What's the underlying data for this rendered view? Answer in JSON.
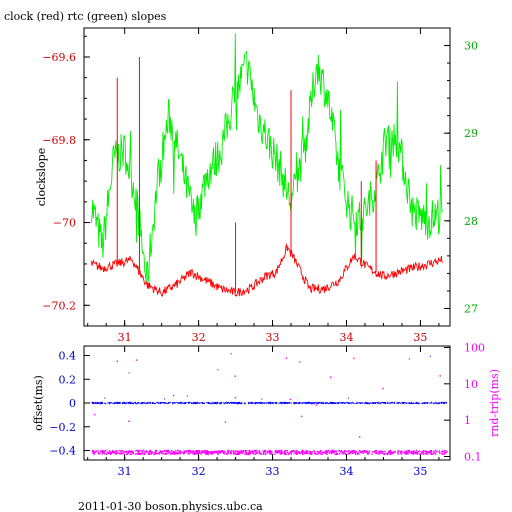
{
  "chart_data": [
    {
      "type": "line",
      "title": "clock (red) rtc (green) slopes",
      "ylabel": "clockslope",
      "y2label": "",
      "xlim": [
        30.45,
        35.4
      ],
      "ylim": [
        -70.25,
        -69.53
      ],
      "y2lim": [
        26.8,
        30.2
      ],
      "x_ticks": [
        "31",
        "32",
        "33",
        "34",
        "35"
      ],
      "y_ticks": [
        "-69.6",
        "-69.8",
        "-70",
        "-70.2"
      ],
      "y2_ticks": [
        "30",
        "29",
        "28",
        "27"
      ],
      "colors": {
        "clock": "#ff0000",
        "rtc": "#00ee00",
        "left_axis": "#cc0000",
        "right_axis": "#00aa00"
      },
      "series": [
        {
          "axis": "left",
          "x": [
            30.55,
            30.7,
            30.9,
            31.1,
            31.3,
            31.5,
            31.7,
            31.9,
            32.1,
            32.3,
            32.5,
            32.7,
            32.9,
            33.05,
            33.2,
            33.3,
            33.5,
            33.7,
            33.9,
            34.1,
            34.3,
            34.5,
            34.7,
            34.9,
            35.1,
            35.3
          ],
          "y": [
            -70.1,
            -70.11,
            -70.1,
            -70.09,
            -70.15,
            -70.17,
            -70.15,
            -70.12,
            -70.14,
            -70.16,
            -70.17,
            -70.16,
            -70.13,
            -70.12,
            -70.06,
            -70.09,
            -70.16,
            -70.16,
            -70.14,
            -70.08,
            -70.11,
            -70.13,
            -70.12,
            -70.11,
            -70.1,
            -70.09
          ],
          "spikes": [
            [
              30.9,
              -69.65
            ],
            [
              31.2,
              -69.6
            ],
            [
              32.5,
              -70.0
            ],
            [
              33.25,
              -69.68
            ],
            [
              34.2,
              -69.9
            ],
            [
              34.4,
              -69.85
            ]
          ]
        },
        {
          "axis": "right",
          "x": [
            30.55,
            30.7,
            30.85,
            31.0,
            31.15,
            31.3,
            31.45,
            31.6,
            31.75,
            31.95,
            32.1,
            32.3,
            32.45,
            32.65,
            32.8,
            32.95,
            33.1,
            33.25,
            33.45,
            33.6,
            33.75,
            33.9,
            34.05,
            34.2,
            34.4,
            34.55,
            34.7,
            34.9,
            35.1,
            35.3
          ],
          "y": [
            28.2,
            27.7,
            28.7,
            28.8,
            28.3,
            27.3,
            28.5,
            29.2,
            28.7,
            28.0,
            28.5,
            28.8,
            29.3,
            29.8,
            29.2,
            28.9,
            28.6,
            28.2,
            28.9,
            29.8,
            29.4,
            28.6,
            28.1,
            28.0,
            28.4,
            29.0,
            28.9,
            28.1,
            28.0,
            28.1
          ]
        }
      ]
    },
    {
      "type": "scatter",
      "title": "",
      "ylabel": "offset(ms)",
      "y2label": "rnd-trip(ms)",
      "xlim": [
        30.45,
        35.4
      ],
      "ylim": [
        -0.48,
        0.48
      ],
      "y2lim_log": [
        0.08,
        110
      ],
      "x_ticks": [
        "31",
        "32",
        "33",
        "34",
        "35"
      ],
      "y_ticks": [
        "0.4",
        "0.2",
        "0",
        "-0.2",
        "-0.4"
      ],
      "y2_ticks": [
        "100",
        "10",
        "1",
        "0.1"
      ],
      "colors": {
        "offset": "#0000ff",
        "rndtrip": "#ff00ff",
        "left_axis": "#0000cc",
        "right_axis": "#ff00ff"
      },
      "series": [
        {
          "axis": "left",
          "x_range": [
            30.55,
            35.35
          ],
          "y_level": 0.0
        },
        {
          "axis": "right",
          "x_range": [
            30.55,
            35.35
          ],
          "y_level": 0.13
        }
      ]
    }
  ],
  "footer": {
    "text": "2011-01-30 boson.physics.ubc.ca"
  }
}
